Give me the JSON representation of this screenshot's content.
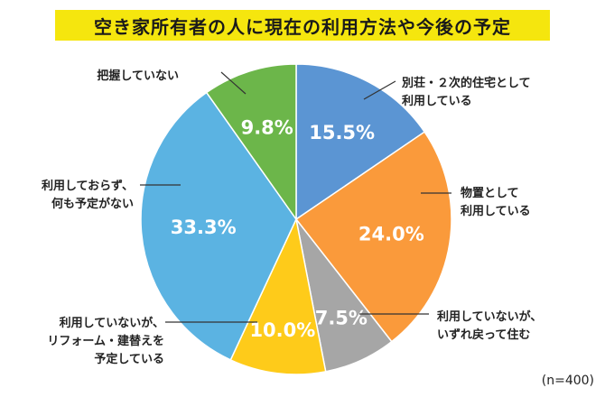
{
  "chart_data": {
    "type": "pie",
    "title": "空き家所有者の人に現在の利用方法や今後の予定",
    "note": "(n=400)",
    "slices": [
      {
        "label_lines": [
          "別荘・２次的住宅として",
          "利用している"
        ],
        "value": 15.5,
        "display": "15.5%",
        "color": "#5b95d3"
      },
      {
        "label_lines": [
          "物置として",
          "利用している"
        ],
        "value": 24.0,
        "display": "24.0%",
        "color": "#fa9a3b"
      },
      {
        "label_lines": [
          "利用していないが、",
          "いずれ戻って住む"
        ],
        "value": 7.5,
        "display": "7.5%",
        "color": "#a6a6a6"
      },
      {
        "label_lines": [
          "利用していないが、",
          "リフォーム・建替えを",
          "予定している"
        ],
        "value": 10.0,
        "display": "10.0%",
        "color": "#fecb1a"
      },
      {
        "label_lines": [
          "利用しておらず、",
          "何も予定がない"
        ],
        "value": 33.3,
        "display": "33.3%",
        "color": "#5bb3e2"
      },
      {
        "label_lines": [
          "把握していない"
        ],
        "value": 9.8,
        "display": "9.8%",
        "color": "#6cb64a"
      }
    ]
  }
}
